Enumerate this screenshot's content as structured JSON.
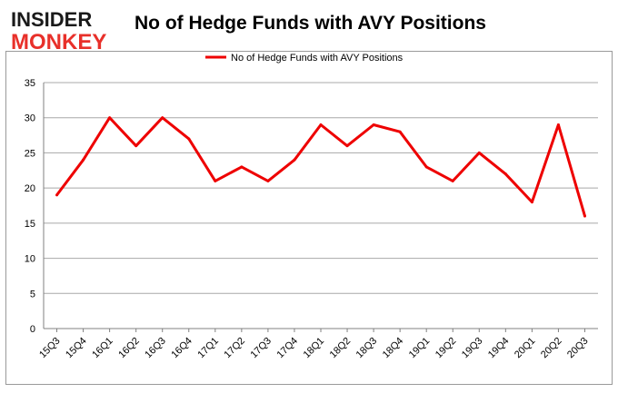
{
  "logo": {
    "line1": "INSIDER",
    "line2": "MONKEY"
  },
  "chart_data": {
    "type": "line",
    "title": "No of Hedge Funds with AVY Positions",
    "categories": [
      "15Q3",
      "15Q4",
      "16Q1",
      "16Q2",
      "16Q3",
      "16Q4",
      "17Q1",
      "17Q2",
      "17Q3",
      "17Q4",
      "18Q1",
      "18Q2",
      "18Q3",
      "18Q4",
      "19Q1",
      "19Q2",
      "19Q3",
      "19Q4",
      "20Q1",
      "20Q2",
      "20Q3"
    ],
    "series": [
      {
        "name": "No of Hedge Funds with AVY Positions",
        "color": "#ee0000",
        "values": [
          19,
          24,
          30,
          26,
          30,
          27,
          21,
          23,
          21,
          24,
          29,
          26,
          29,
          28,
          23,
          21,
          25,
          22,
          18,
          29,
          16
        ]
      }
    ],
    "ylim": [
      0,
      35
    ],
    "yticks": [
      0,
      5,
      10,
      15,
      20,
      25,
      30,
      35
    ],
    "grid": true,
    "legend": "top-center",
    "xlabel": "",
    "ylabel": ""
  }
}
